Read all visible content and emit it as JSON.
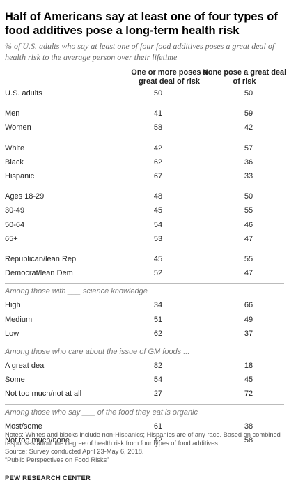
{
  "title": "Half of Americans say at least one of four types of food additives pose a long-term health risk",
  "subtitle": "% of U.S. adults who say at least one of four food additives poses a great deal of health risk to the average person over their lifetime",
  "columns": [
    "One or more poses a great deal of risk",
    "None pose a great deal of risk"
  ],
  "chart_data": {
    "type": "table",
    "title": "Half of Americans say at least one of four types of food additives pose a long-term health risk",
    "columns": [
      "One or more poses a great deal of risk",
      "None pose a great deal of risk"
    ],
    "groups": [
      {
        "heading": "",
        "rows": [
          {
            "label": "U.S. adults",
            "values": [
              50,
              50
            ]
          }
        ]
      },
      {
        "heading": "",
        "rows": [
          {
            "label": "Men",
            "values": [
              41,
              59
            ]
          },
          {
            "label": "Women",
            "values": [
              58,
              42
            ]
          }
        ]
      },
      {
        "heading": "",
        "rows": [
          {
            "label": "White",
            "values": [
              42,
              57
            ]
          },
          {
            "label": "Black",
            "values": [
              62,
              36
            ]
          },
          {
            "label": "Hispanic",
            "values": [
              67,
              33
            ]
          }
        ]
      },
      {
        "heading": "",
        "rows": [
          {
            "label": "Ages 18-29",
            "values": [
              48,
              50
            ]
          },
          {
            "label": "30-49",
            "values": [
              45,
              55
            ]
          },
          {
            "label": "50-64",
            "values": [
              54,
              46
            ]
          },
          {
            "label": "65+",
            "values": [
              53,
              47
            ]
          }
        ]
      },
      {
        "heading": "",
        "rows": [
          {
            "label": "Republican/lean Rep",
            "values": [
              45,
              55
            ]
          },
          {
            "label": "Democrat/lean Dem",
            "values": [
              52,
              47
            ]
          }
        ]
      },
      {
        "heading": "Among those with ___ science knowledge",
        "rows": [
          {
            "label": "High",
            "values": [
              34,
              66
            ]
          },
          {
            "label": "Medium",
            "values": [
              51,
              49
            ]
          },
          {
            "label": "Low",
            "values": [
              62,
              37
            ]
          }
        ]
      },
      {
        "heading": "Among those who care about the issue of GM foods ...",
        "rows": [
          {
            "label": "A great deal",
            "values": [
              82,
              18
            ]
          },
          {
            "label": "Some",
            "values": [
              54,
              45
            ]
          },
          {
            "label": "Not too much/not at all",
            "values": [
              27,
              72
            ]
          }
        ]
      },
      {
        "heading": "Among those who say ___ of the food they eat is organic",
        "rows": [
          {
            "label": "Most/some",
            "values": [
              61,
              38
            ]
          },
          {
            "label": "Not too much/none",
            "values": [
              42,
              58
            ]
          }
        ]
      }
    ]
  },
  "notes": "Notes: Whites and blacks include non-Hispanics; Hispanics are of any race. Based on combined responses about the degree of health risk from four types of food additives.",
  "source": "Source: Survey conducted April 23-May 6, 2018.",
  "report": "“Public Perspectives on Food Risks”",
  "brand": "PEW RESEARCH CENTER"
}
